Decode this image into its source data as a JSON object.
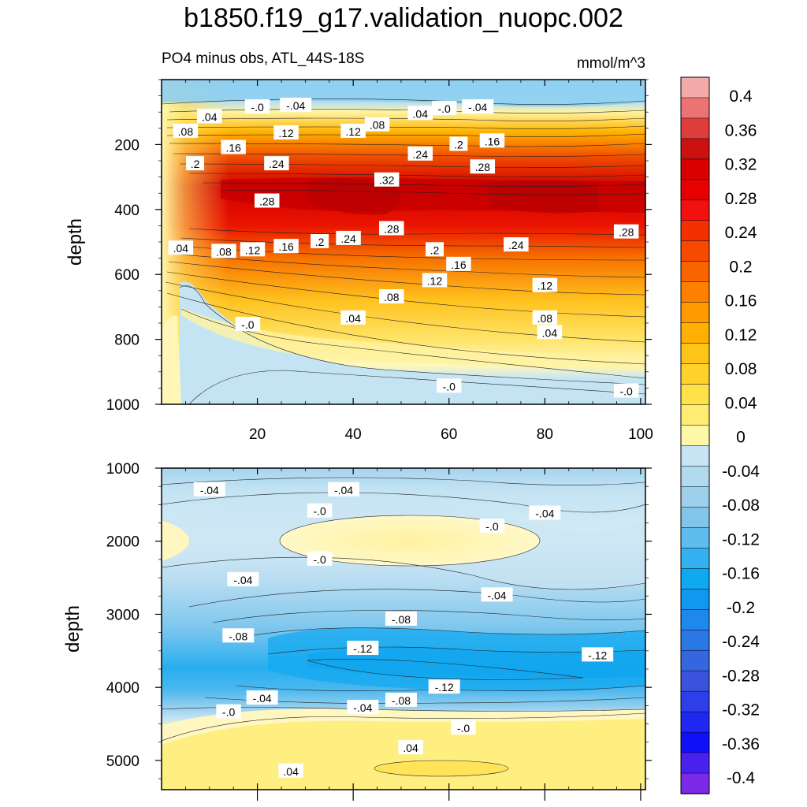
{
  "title": "b1850.f19_g17.validation_nuopc.002",
  "chart_data": {
    "type": "heatmap",
    "subtitle": "PO4 minus obs, ATL_44S-18S",
    "units": "mmol/m^3",
    "ylabel": "depth",
    "xlim": [
      0,
      101
    ],
    "x_ticks": [
      "20",
      "40",
      "60",
      "80",
      "100"
    ],
    "colorbar": {
      "levels": [
        "0.4",
        "0.36",
        "0.32",
        "0.28",
        "0.24",
        "0.2",
        "0.16",
        "0.12",
        "0.08",
        "0.04",
        "0",
        "-0.04",
        "-0.08",
        "-0.12",
        "-0.16",
        "-0.2",
        "-0.24",
        "-0.28",
        "-0.32",
        "-0.36",
        "-0.4"
      ],
      "colors": [
        "#f5aaaa",
        "#ec7373",
        "#dd3d3d",
        "#cc1111",
        "#d80000",
        "#e60000",
        "#f21010",
        "#f53000",
        "#f54a00",
        "#f96400",
        "#ff8000",
        "#ff9a00",
        "#ffb000",
        "#ffc418",
        "#ffd22c",
        "#ffe14a",
        "#ffec72",
        "#fff7a8",
        "#c6e4f3",
        "#b2daef",
        "#9ed0eb",
        "#82c4ea",
        "#60bbee",
        "#32b0ef",
        "#10a8ef",
        "#0f98ee",
        "#1e88ec",
        "#2a78e6",
        "#3466e0",
        "#3a52dc",
        "#2e3ee8",
        "#1e28f2",
        "#1010f6",
        "#4a20ee",
        "#7a2ae6"
      ]
    },
    "panels": [
      {
        "name": "upper",
        "ylim": [
          0,
          1000
        ],
        "y_ticks": [
          "200",
          "400",
          "600",
          "800",
          "1000"
        ],
        "contour_labels": [
          {
            "text": ".04",
            "x": 10,
            "y": 115
          },
          {
            "text": "-.0",
            "x": 20,
            "y": 85
          },
          {
            "text": "-.04",
            "x": 28,
            "y": 80
          },
          {
            "text": ".08",
            "x": 5,
            "y": 160
          },
          {
            "text": ".16",
            "x": 15,
            "y": 210
          },
          {
            "text": ".12",
            "x": 26,
            "y": 165
          },
          {
            "text": ".12",
            "x": 40,
            "y": 160
          },
          {
            "text": ".08",
            "x": 45,
            "y": 140
          },
          {
            "text": ".04",
            "x": 54,
            "y": 105
          },
          {
            "text": "-.0",
            "x": 59,
            "y": 90
          },
          {
            "text": "-.04",
            "x": 66,
            "y": 85
          },
          {
            "text": ".2",
            "x": 7,
            "y": 260
          },
          {
            "text": ".24",
            "x": 24,
            "y": 260
          },
          {
            "text": ".24",
            "x": 54,
            "y": 230
          },
          {
            "text": ".2",
            "x": 62,
            "y": 200
          },
          {
            "text": ".16",
            "x": 69,
            "y": 190
          },
          {
            "text": ".32",
            "x": 47,
            "y": 310
          },
          {
            "text": ".28",
            "x": 67,
            "y": 270
          },
          {
            "text": ".28",
            "x": 22,
            "y": 375
          },
          {
            "text": ".28",
            "x": 48,
            "y": 460
          },
          {
            "text": ".28",
            "x": 97,
            "y": 470
          },
          {
            "text": ".04",
            "x": 4,
            "y": 520
          },
          {
            "text": ".08",
            "x": 13,
            "y": 530
          },
          {
            "text": ".12",
            "x": 19,
            "y": 525
          },
          {
            "text": ".16",
            "x": 26,
            "y": 515
          },
          {
            "text": ".2",
            "x": 33,
            "y": 500
          },
          {
            "text": ".24",
            "x": 39,
            "y": 490
          },
          {
            "text": ".2",
            "x": 57,
            "y": 525
          },
          {
            "text": ".16",
            "x": 62,
            "y": 570
          },
          {
            "text": ".24",
            "x": 74,
            "y": 510
          },
          {
            "text": ".12",
            "x": 57,
            "y": 620
          },
          {
            "text": ".12",
            "x": 80,
            "y": 635
          },
          {
            "text": ".08",
            "x": 48,
            "y": 670
          },
          {
            "text": ".08",
            "x": 80,
            "y": 735
          },
          {
            "text": ".04",
            "x": 40,
            "y": 735
          },
          {
            "text": ".04",
            "x": 81,
            "y": 780
          },
          {
            "text": "-.0",
            "x": 18,
            "y": 755
          },
          {
            "text": "-.0",
            "x": 60,
            "y": 945
          },
          {
            "text": "-.0",
            "x": 97,
            "y": 960
          }
        ]
      },
      {
        "name": "lower",
        "ylim": [
          1000,
          5400
        ],
        "y_ticks": [
          "1000",
          "2000",
          "3000",
          "4000",
          "5000"
        ],
        "contour_labels": [
          {
            "text": "-.04",
            "x": 10,
            "y": 1300
          },
          {
            "text": "-.04",
            "x": 38,
            "y": 1300
          },
          {
            "text": "-.0",
            "x": 33,
            "y": 1590
          },
          {
            "text": "-.0",
            "x": 69,
            "y": 1800
          },
          {
            "text": "-.04",
            "x": 80,
            "y": 1620
          },
          {
            "text": "-.0",
            "x": 33,
            "y": 2250
          },
          {
            "text": "-.04",
            "x": 17,
            "y": 2530
          },
          {
            "text": "-.04",
            "x": 70,
            "y": 2740
          },
          {
            "text": "-.08",
            "x": 16,
            "y": 3300
          },
          {
            "text": "-.08",
            "x": 50,
            "y": 3070
          },
          {
            "text": "-.12",
            "x": 42,
            "y": 3470
          },
          {
            "text": "-.12",
            "x": 91,
            "y": 3560
          },
          {
            "text": "-.12",
            "x": 59,
            "y": 4000
          },
          {
            "text": "-.04",
            "x": 21,
            "y": 4150
          },
          {
            "text": "-.04",
            "x": 42,
            "y": 4280
          },
          {
            "text": "-.08",
            "x": 50,
            "y": 4180
          },
          {
            "text": "-.0",
            "x": 14,
            "y": 4340
          },
          {
            "text": "-.0",
            "x": 63,
            "y": 4560
          },
          {
            "text": ".04",
            "x": 52,
            "y": 4830
          },
          {
            "text": ".04",
            "x": 27,
            "y": 5150
          }
        ]
      }
    ]
  }
}
